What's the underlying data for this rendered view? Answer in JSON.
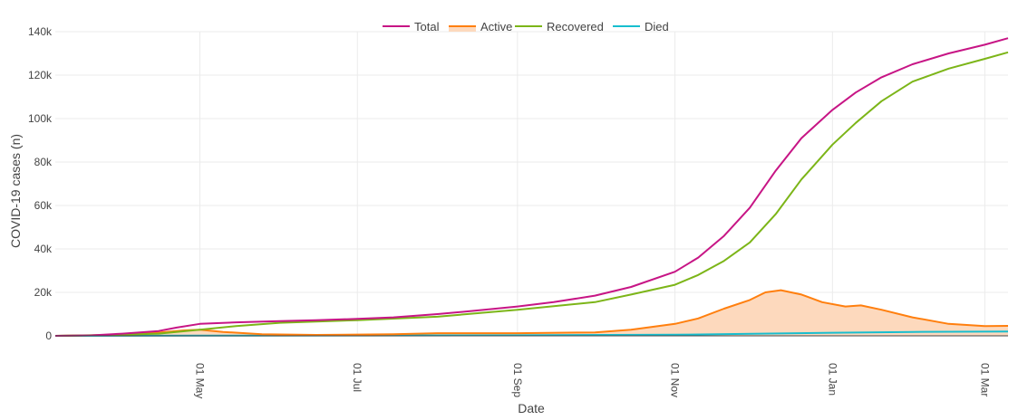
{
  "chart_data": {
    "type": "line",
    "xlabel": "Date",
    "ylabel": "COVID-19 cases (n)",
    "x_range": [
      "2020-03-06",
      "2021-03-10"
    ],
    "ylim": [
      0,
      140000
    ],
    "y_ticks": [
      {
        "value": 0,
        "label": "0"
      },
      {
        "value": 20000,
        "label": "20k"
      },
      {
        "value": 40000,
        "label": "40k"
      },
      {
        "value": 60000,
        "label": "60k"
      },
      {
        "value": 80000,
        "label": "80k"
      },
      {
        "value": 100000,
        "label": "100k"
      },
      {
        "value": 120000,
        "label": "120k"
      },
      {
        "value": 140000,
        "label": "140k"
      }
    ],
    "x_ticks": [
      {
        "date": "2020-05-01",
        "label": "01 May"
      },
      {
        "date": "2020-07-01",
        "label": "01 Jul"
      },
      {
        "date": "2020-09-01",
        "label": "01 Sep"
      },
      {
        "date": "2020-11-01",
        "label": "01 Nov"
      },
      {
        "date": "2021-01-01",
        "label": "01 Jan"
      },
      {
        "date": "2021-03-01",
        "label": "01 Mar"
      }
    ],
    "grid": true,
    "legend_position": "top-center",
    "series": [
      {
        "name": "Total",
        "color": "#c71585",
        "fill": false,
        "points": [
          [
            "2020-03-06",
            0
          ],
          [
            "2020-03-20",
            200
          ],
          [
            "2020-04-01",
            1000
          ],
          [
            "2020-04-15",
            2200
          ],
          [
            "2020-04-22",
            3800
          ],
          [
            "2020-05-01",
            5500
          ],
          [
            "2020-05-15",
            6200
          ],
          [
            "2020-06-01",
            6800
          ],
          [
            "2020-06-15",
            7200
          ],
          [
            "2020-07-01",
            7800
          ],
          [
            "2020-07-15",
            8500
          ],
          [
            "2020-08-01",
            10000
          ],
          [
            "2020-08-15",
            11500
          ],
          [
            "2020-09-01",
            13500
          ],
          [
            "2020-09-15",
            15500
          ],
          [
            "2020-10-01",
            18500
          ],
          [
            "2020-10-15",
            22500
          ],
          [
            "2020-11-01",
            29500
          ],
          [
            "2020-11-10",
            36000
          ],
          [
            "2020-11-20",
            46000
          ],
          [
            "2020-11-30",
            59000
          ],
          [
            "2020-12-10",
            76000
          ],
          [
            "2020-12-20",
            91000
          ],
          [
            "2021-01-01",
            104000
          ],
          [
            "2021-01-10",
            112000
          ],
          [
            "2021-01-20",
            119000
          ],
          [
            "2021-02-01",
            125000
          ],
          [
            "2021-02-15",
            130000
          ],
          [
            "2021-03-01",
            134000
          ],
          [
            "2021-03-10",
            137000
          ]
        ]
      },
      {
        "name": "Active",
        "color": "#ff7f0e",
        "fill": true,
        "fill_color": "#fdd9bd",
        "points": [
          [
            "2020-03-06",
            0
          ],
          [
            "2020-03-25",
            300
          ],
          [
            "2020-04-15",
            1500
          ],
          [
            "2020-04-25",
            2500
          ],
          [
            "2020-05-01",
            2800
          ],
          [
            "2020-05-10",
            1800
          ],
          [
            "2020-05-25",
            700
          ],
          [
            "2020-06-15",
            400
          ],
          [
            "2020-07-15",
            700
          ],
          [
            "2020-08-01",
            1200
          ],
          [
            "2020-09-01",
            1200
          ],
          [
            "2020-10-01",
            1600
          ],
          [
            "2020-10-15",
            2800
          ],
          [
            "2020-11-01",
            5500
          ],
          [
            "2020-11-10",
            8000
          ],
          [
            "2020-11-20",
            12500
          ],
          [
            "2020-11-30",
            16500
          ],
          [
            "2020-12-06",
            20000
          ],
          [
            "2020-12-12",
            21000
          ],
          [
            "2020-12-20",
            19000
          ],
          [
            "2020-12-28",
            15500
          ],
          [
            "2021-01-06",
            13500
          ],
          [
            "2021-01-12",
            14000
          ],
          [
            "2021-01-20",
            12000
          ],
          [
            "2021-02-01",
            8500
          ],
          [
            "2021-02-15",
            5500
          ],
          [
            "2021-03-01",
            4500
          ],
          [
            "2021-03-10",
            4600
          ]
        ]
      },
      {
        "name": "Recovered",
        "color": "#7cb518",
        "fill": false,
        "points": [
          [
            "2020-03-06",
            0
          ],
          [
            "2020-04-01",
            500
          ],
          [
            "2020-04-15",
            1000
          ],
          [
            "2020-05-01",
            2800
          ],
          [
            "2020-05-15",
            4500
          ],
          [
            "2020-06-01",
            6000
          ],
          [
            "2020-07-01",
            7200
          ],
          [
            "2020-08-01",
            8800
          ],
          [
            "2020-09-01",
            12000
          ],
          [
            "2020-10-01",
            15500
          ],
          [
            "2020-10-15",
            19000
          ],
          [
            "2020-11-01",
            23500
          ],
          [
            "2020-11-10",
            28000
          ],
          [
            "2020-11-20",
            34500
          ],
          [
            "2020-11-30",
            43000
          ],
          [
            "2020-12-10",
            56000
          ],
          [
            "2020-12-20",
            72000
          ],
          [
            "2021-01-01",
            88000
          ],
          [
            "2021-01-10",
            98000
          ],
          [
            "2021-01-20",
            108000
          ],
          [
            "2021-02-01",
            117000
          ],
          [
            "2021-02-15",
            123000
          ],
          [
            "2021-03-01",
            127500
          ],
          [
            "2021-03-10",
            130500
          ]
        ]
      },
      {
        "name": "Died",
        "color": "#17becf",
        "fill": false,
        "points": [
          [
            "2020-03-06",
            0
          ],
          [
            "2020-05-01",
            100
          ],
          [
            "2020-07-01",
            150
          ],
          [
            "2020-09-01",
            250
          ],
          [
            "2020-11-01",
            500
          ],
          [
            "2020-12-01",
            900
          ],
          [
            "2021-01-01",
            1400
          ],
          [
            "2021-02-01",
            1800
          ],
          [
            "2021-03-10",
            2000
          ]
        ]
      }
    ]
  }
}
